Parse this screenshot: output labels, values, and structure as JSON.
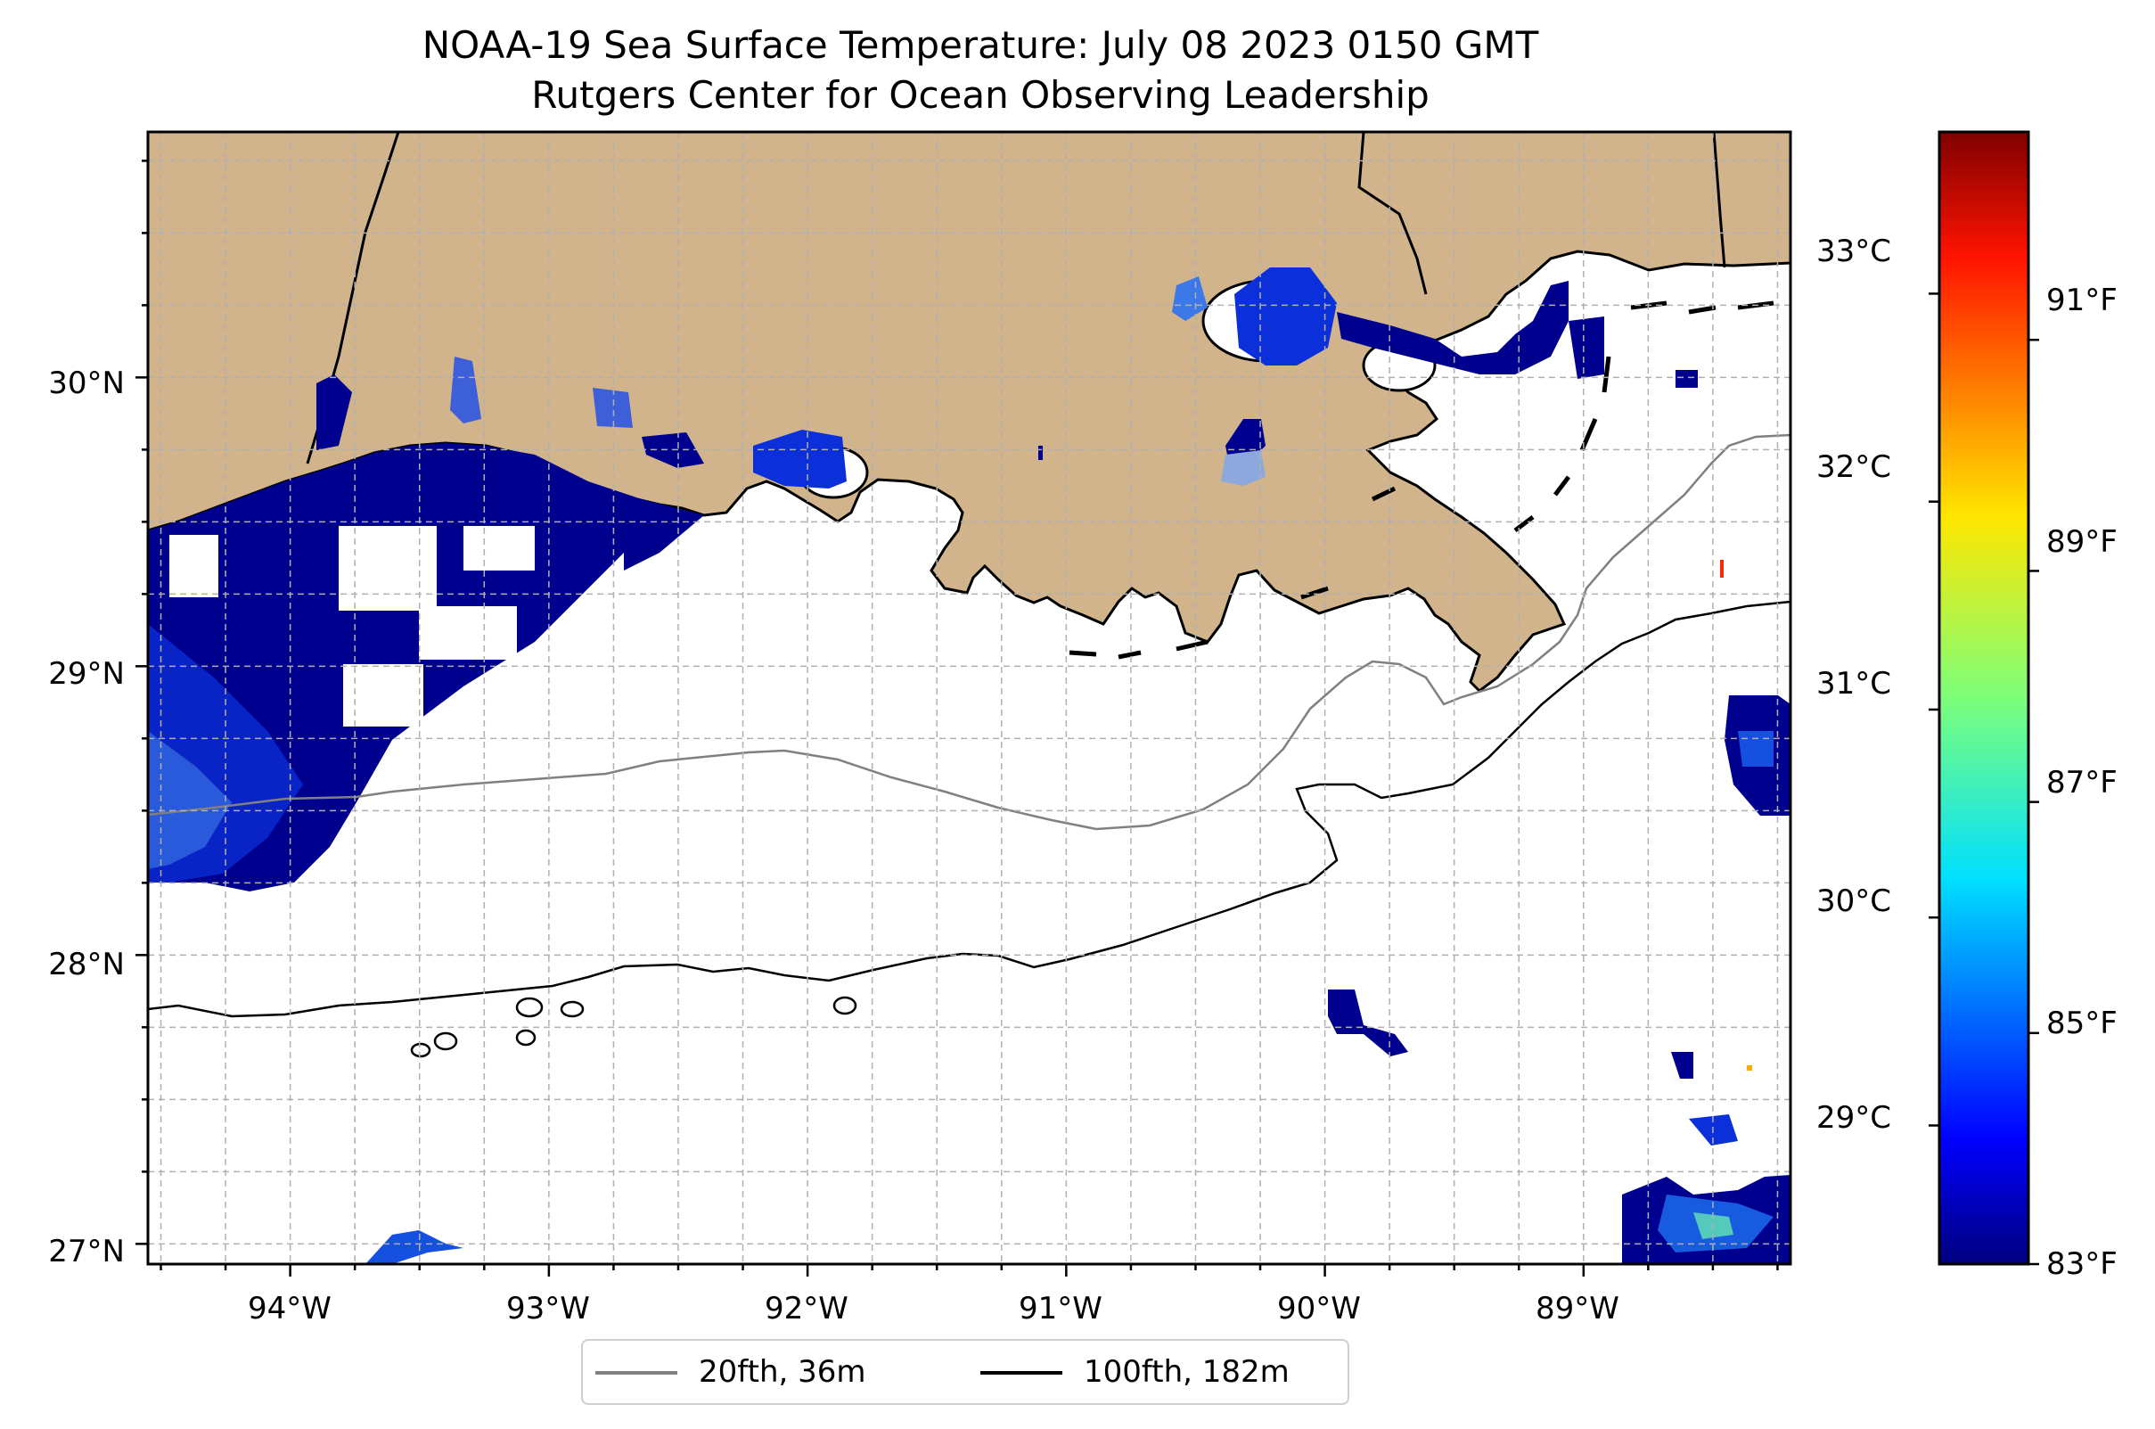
{
  "title": {
    "line1": "NOAA-19 Sea Surface Temperature: July 08 2023 0150 GMT",
    "line2": "Rutgers Center for Ocean Observing Leadership"
  },
  "map": {
    "lon_range": [
      -94.55,
      -88.2
    ],
    "lat_range": [
      26.93,
      30.85
    ],
    "lat_ticks": [
      {
        "value": 30,
        "label": "30°N"
      },
      {
        "value": 29,
        "label": "29°N"
      },
      {
        "value": 28,
        "label": "28°N"
      },
      {
        "value": 27,
        "label": "27°N"
      }
    ],
    "lon_ticks": [
      {
        "value": -94,
        "label": "94°W"
      },
      {
        "value": -93,
        "label": "93°W"
      },
      {
        "value": -92,
        "label": "92°W"
      },
      {
        "value": -91,
        "label": "91°W"
      },
      {
        "value": -90,
        "label": "90°W"
      },
      {
        "value": -89,
        "label": "89°W"
      }
    ],
    "land_color": "#d2b48c",
    "ocean_color": "#ffffff",
    "grid": "dashed",
    "isobaths": [
      {
        "label": "20fth, 36m",
        "color": "#808080"
      },
      {
        "label": "100fth, 182m",
        "color": "#000000"
      }
    ]
  },
  "colorbar": {
    "colormap": "jet",
    "celsius_labels": [
      "33°C",
      "32°C",
      "31°C",
      "30°C",
      "29°C"
    ],
    "fahrenheit_labels": [
      "91°F",
      "89°F",
      "87°F",
      "85°F",
      "83°F"
    ],
    "min_f": 83,
    "max_f": 92.8
  },
  "legend": {
    "items": [
      {
        "label": "20fth, 36m",
        "color": "#808080"
      },
      {
        "label": "100fth, 182m",
        "color": "#000000"
      }
    ],
    "placement": "bottom-center"
  }
}
